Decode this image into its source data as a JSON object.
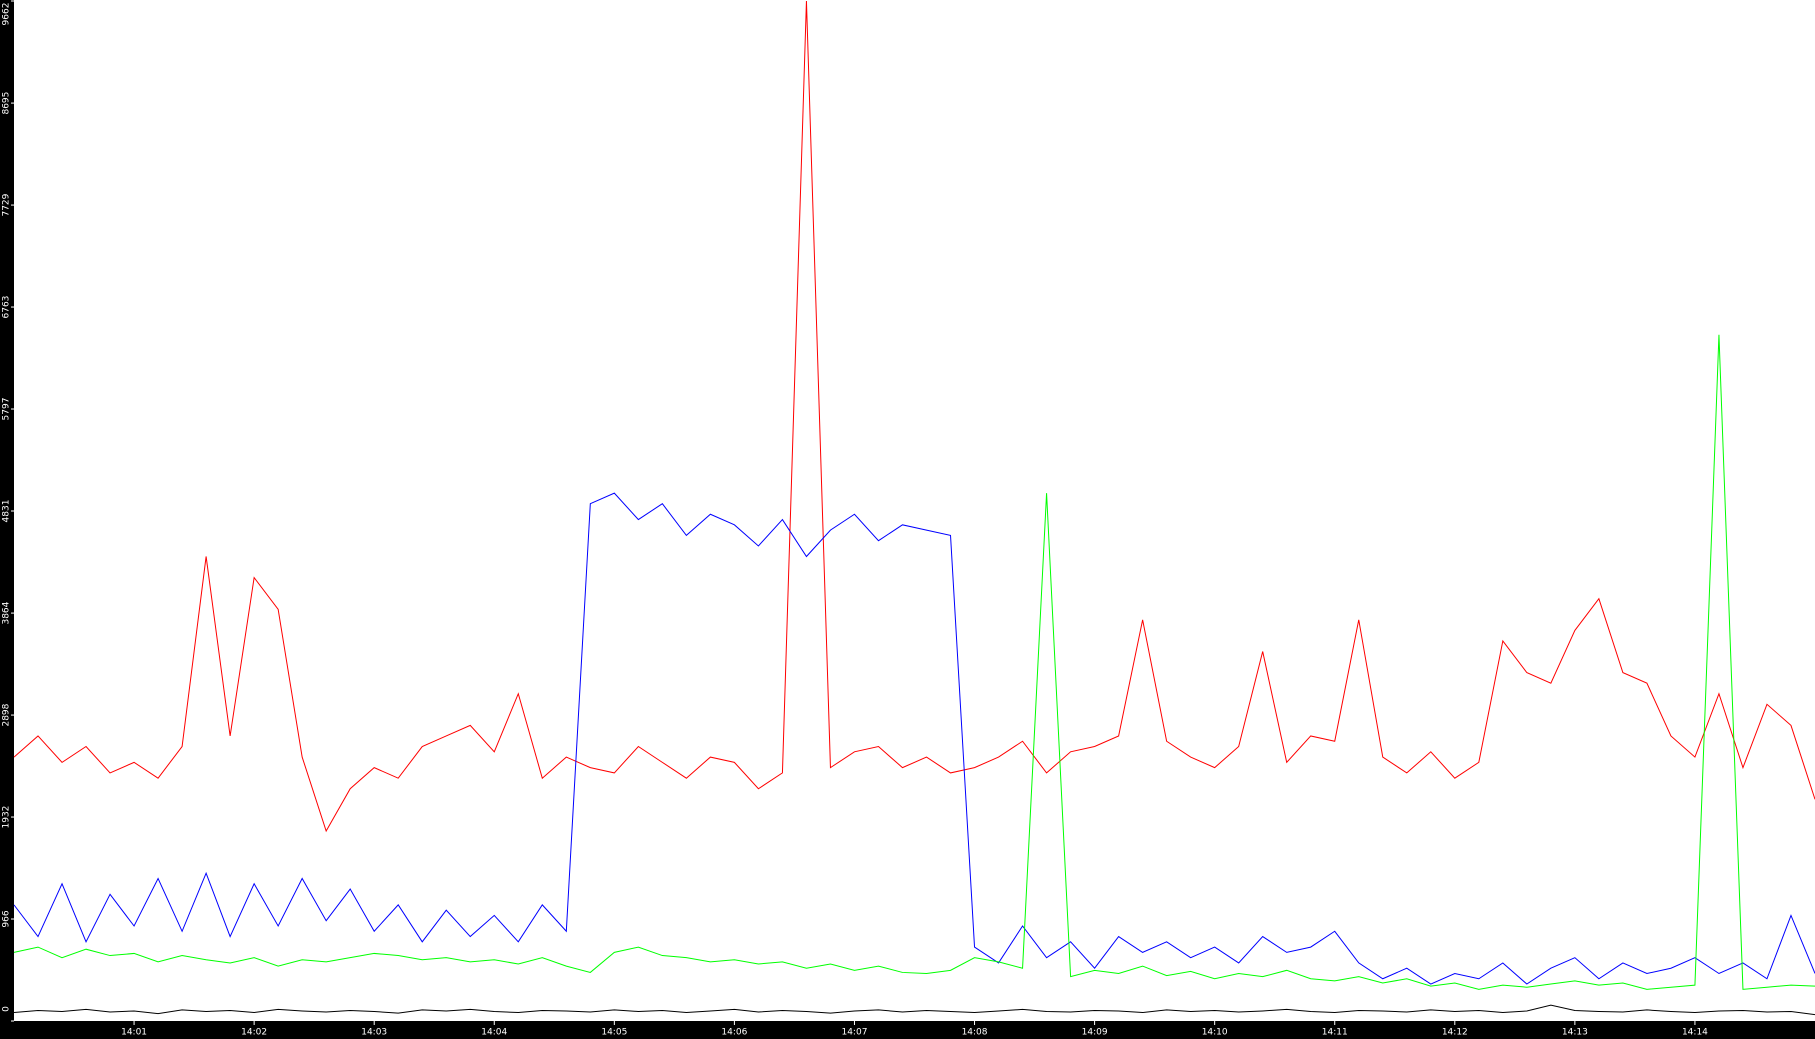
{
  "chart_data": {
    "type": "line",
    "xlim": [
      840,
      855
    ],
    "xticks": [
      {
        "value": 841,
        "label": "14:01"
      },
      {
        "value": 842,
        "label": "14:02"
      },
      {
        "value": 843,
        "label": "14:03"
      },
      {
        "value": 844,
        "label": "14:04"
      },
      {
        "value": 845,
        "label": "14:05"
      },
      {
        "value": 846,
        "label": "14:06"
      },
      {
        "value": 847,
        "label": "14:07"
      },
      {
        "value": 848,
        "label": "14:08"
      },
      {
        "value": 849,
        "label": "14:09"
      },
      {
        "value": 850,
        "label": "14:10"
      },
      {
        "value": 851,
        "label": "14:11"
      },
      {
        "value": 852,
        "label": "14:12"
      },
      {
        "value": 853,
        "label": "14:13"
      },
      {
        "value": 854,
        "label": "14:14"
      }
    ],
    "ylim": [
      0,
      9662
    ],
    "yticks": [
      0,
      966,
      1932,
      2898,
      3864,
      4831,
      5797,
      6763,
      7729,
      8695,
      9662
    ],
    "x": [
      840.0,
      840.2,
      840.4,
      840.6,
      840.8,
      841.0,
      841.2,
      841.4,
      841.6,
      841.8,
      842.0,
      842.2,
      842.4,
      842.6,
      842.8,
      843.0,
      843.2,
      843.4,
      843.6,
      843.8,
      844.0,
      844.2,
      844.4,
      844.6,
      844.8,
      845.0,
      845.2,
      845.4,
      845.6,
      845.8,
      846.0,
      846.2,
      846.4,
      846.6,
      846.8,
      847.0,
      847.2,
      847.4,
      847.6,
      847.8,
      848.0,
      848.2,
      848.4,
      848.6,
      848.8,
      849.0,
      849.2,
      849.4,
      849.6,
      849.8,
      850.0,
      850.2,
      850.4,
      850.6,
      850.8,
      851.0,
      851.2,
      851.4,
      851.6,
      851.8,
      852.0,
      852.2,
      852.4,
      852.6,
      852.8,
      853.0,
      853.2,
      853.4,
      853.6,
      853.8,
      854.0,
      854.2,
      854.4,
      854.6,
      854.8,
      855.0
    ],
    "series": [
      {
        "color": "#ff0000",
        "values": [
          2500,
          2700,
          2450,
          2600,
          2350,
          2450,
          2300,
          2600,
          4400,
          2700,
          4200,
          3900,
          2500,
          1800,
          2200,
          2400,
          2300,
          2600,
          2700,
          2800,
          2550,
          3100,
          2300,
          2500,
          2400,
          2350,
          2600,
          2450,
          2300,
          2500,
          2450,
          2200,
          2350,
          9662,
          2400,
          2550,
          2600,
          2400,
          2500,
          2350,
          2400,
          2500,
          2650,
          2350,
          2550,
          2600,
          2700,
          3800,
          2650,
          2500,
          2400,
          2600,
          3500,
          2450,
          2700,
          2650,
          3800,
          2500,
          2350,
          2550,
          2300,
          2450,
          3600,
          3300,
          3200,
          3700,
          4000,
          3300,
          3200,
          2700,
          2500,
          3100,
          2400,
          3000,
          2800,
          2100
        ]
      },
      {
        "color": "#0000ff",
        "values": [
          1100,
          800,
          1300,
          750,
          1200,
          900,
          1350,
          850,
          1400,
          800,
          1300,
          900,
          1350,
          950,
          1250,
          850,
          1100,
          750,
          1050,
          800,
          1000,
          750,
          1100,
          850,
          4900,
          5000,
          4750,
          4900,
          4600,
          4800,
          4700,
          4500,
          4750,
          4400,
          4650,
          4800,
          4550,
          4700,
          4650,
          4600,
          700,
          550,
          900,
          600,
          750,
          500,
          800,
          650,
          750,
          600,
          700,
          550,
          800,
          650,
          700,
          850,
          550,
          400,
          500,
          350,
          450,
          400,
          550,
          350,
          500,
          600,
          400,
          550,
          450,
          500,
          600,
          450,
          550,
          400,
          1000,
          450
        ]
      },
      {
        "color": "#00ff00",
        "values": [
          650,
          700,
          600,
          680,
          620,
          640,
          560,
          620,
          580,
          550,
          600,
          520,
          580,
          560,
          600,
          640,
          620,
          580,
          600,
          560,
          580,
          540,
          600,
          520,
          460,
          650,
          700,
          620,
          600,
          560,
          580,
          540,
          560,
          500,
          540,
          480,
          520,
          460,
          450,
          480,
          600,
          560,
          500,
          5000,
          420,
          480,
          450,
          520,
          430,
          470,
          400,
          450,
          420,
          480,
          400,
          380,
          420,
          360,
          400,
          330,
          360,
          300,
          340,
          320,
          350,
          380,
          340,
          360,
          300,
          320,
          340,
          6500,
          300,
          320,
          340,
          330
        ]
      },
      {
        "color": "#000000",
        "values": [
          80,
          100,
          90,
          110,
          85,
          95,
          70,
          105,
          90,
          100,
          80,
          110,
          95,
          85,
          100,
          90,
          75,
          105,
          95,
          110,
          90,
          80,
          100,
          95,
          85,
          105,
          90,
          100,
          80,
          95,
          110,
          85,
          100,
          90,
          75,
          95,
          105,
          85,
          100,
          90,
          80,
          95,
          110,
          90,
          85,
          100,
          95,
          80,
          105,
          90,
          100,
          85,
          95,
          110,
          90,
          80,
          100,
          95,
          85,
          105,
          90,
          100,
          80,
          95,
          150,
          100,
          90,
          85,
          105,
          90,
          80,
          95,
          100,
          85,
          90,
          60
        ]
      }
    ]
  }
}
